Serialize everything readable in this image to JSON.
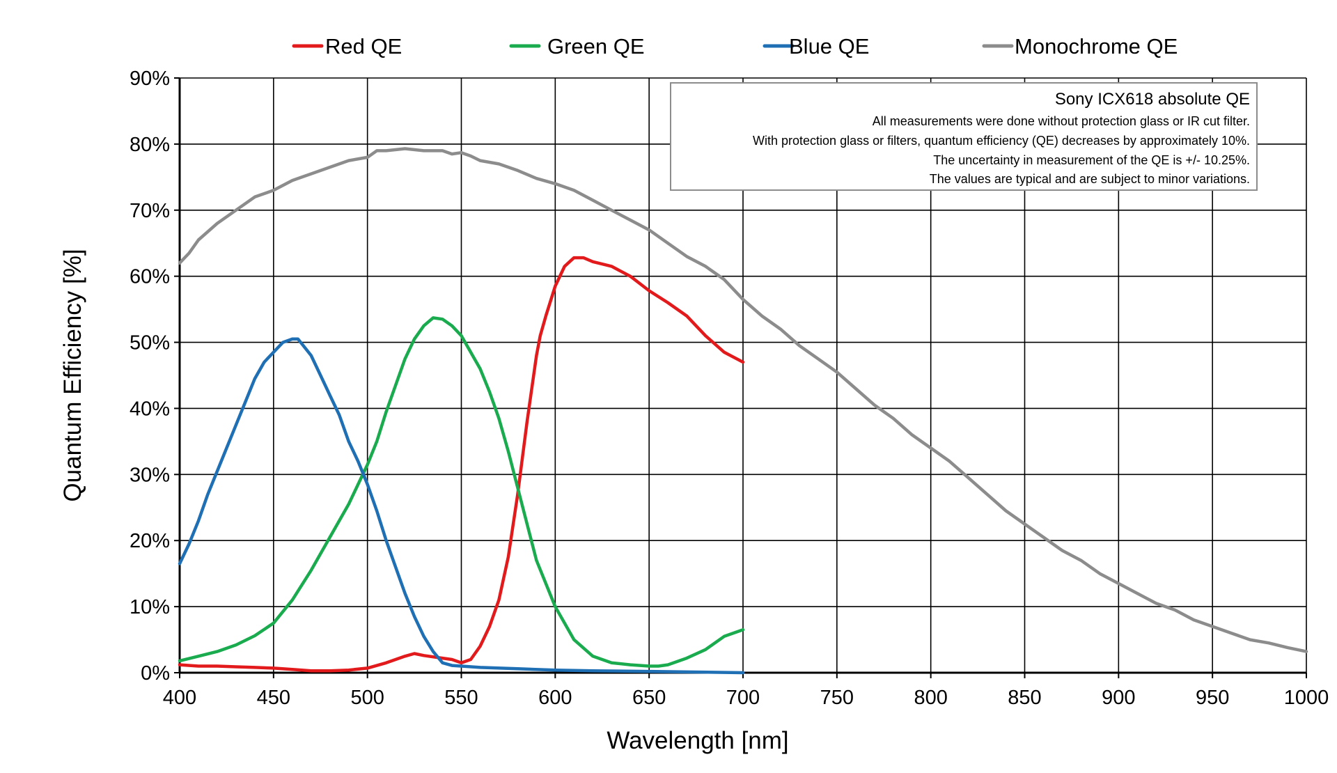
{
  "chart_data": {
    "type": "line",
    "xlabel": "Wavelength [nm]",
    "ylabel": "Quantum Efficiency [%]",
    "xlim": [
      400,
      1000
    ],
    "ylim": [
      0,
      90
    ],
    "x_ticks": [
      "400",
      "450",
      "500",
      "550",
      "600",
      "650",
      "700",
      "750",
      "800",
      "850",
      "900",
      "950",
      "1000"
    ],
    "y_ticks": [
      "0%",
      "10%",
      "20%",
      "30%",
      "40%",
      "50%",
      "60%",
      "70%",
      "80%",
      "90%"
    ],
    "grid": true,
    "legend_position": "top",
    "annotation": {
      "title": "Sony ICX618 absolute QE",
      "lines": [
        "All measurements were done without protection glass or IR cut filter.",
        "With protection glass or filters, quantum efficiency (QE) decreases by approximately 10%.",
        "The uncertainty in measurement of the QE is +/- 10.25%.",
        "The values are typical and are subject to minor variations."
      ]
    },
    "series": [
      {
        "name": "Red QE",
        "color": "#e31a1c",
        "x": [
          400,
          410,
          420,
          430,
          440,
          450,
          460,
          470,
          480,
          490,
          500,
          510,
          520,
          525,
          530,
          540,
          545,
          550,
          555,
          560,
          565,
          570,
          575,
          580,
          585,
          590,
          592,
          595,
          600,
          605,
          610,
          615,
          620,
          630,
          640,
          650,
          660,
          670,
          675,
          680,
          690,
          700
        ],
        "y": [
          1.2,
          1.0,
          1.0,
          0.9,
          0.8,
          0.7,
          0.5,
          0.3,
          0.3,
          0.4,
          0.7,
          1.5,
          2.5,
          2.9,
          2.6,
          2.2,
          2.0,
          1.5,
          2.0,
          4.0,
          7.0,
          11.0,
          17.5,
          27.0,
          38.0,
          48.0,
          51.0,
          54.0,
          58.5,
          61.5,
          62.8,
          62.8,
          62.2,
          61.5,
          60.0,
          57.8,
          56.0,
          54.0,
          52.5,
          51.0,
          48.5,
          47.0
        ]
      },
      {
        "name": "Green QE",
        "color": "#1aab4f",
        "x": [
          400,
          410,
          420,
          430,
          440,
          450,
          460,
          470,
          480,
          490,
          500,
          505,
          510,
          515,
          520,
          525,
          530,
          535,
          540,
          545,
          550,
          555,
          560,
          565,
          570,
          575,
          580,
          590,
          600,
          610,
          620,
          630,
          640,
          650,
          655,
          660,
          670,
          680,
          690,
          700
        ],
        "y": [
          1.8,
          2.5,
          3.2,
          4.2,
          5.6,
          7.5,
          11.0,
          15.5,
          20.5,
          25.5,
          31.5,
          35.0,
          39.5,
          43.5,
          47.5,
          50.5,
          52.5,
          53.7,
          53.5,
          52.5,
          51.0,
          48.5,
          46.0,
          42.5,
          38.5,
          33.5,
          28.0,
          17.0,
          10.0,
          5.0,
          2.5,
          1.5,
          1.2,
          1.0,
          1.0,
          1.2,
          2.2,
          3.5,
          5.5,
          6.5
        ]
      },
      {
        "name": "Blue QE",
        "color": "#1f6fb5",
        "x": [
          400,
          405,
          410,
          415,
          420,
          425,
          430,
          435,
          440,
          445,
          450,
          455,
          460,
          463,
          465,
          470,
          475,
          480,
          485,
          490,
          495,
          500,
          505,
          510,
          515,
          520,
          525,
          530,
          535,
          540,
          545,
          550,
          560,
          580,
          600,
          620,
          650,
          700
        ],
        "y": [
          16.5,
          19.5,
          23.0,
          27.0,
          30.5,
          34.0,
          37.5,
          41.0,
          44.5,
          47.0,
          48.5,
          50.0,
          50.5,
          50.5,
          49.8,
          48.0,
          45.0,
          42.0,
          39.0,
          35.0,
          32.0,
          28.5,
          24.5,
          20.0,
          16.0,
          12.0,
          8.5,
          5.5,
          3.2,
          1.5,
          1.1,
          1.0,
          0.8,
          0.6,
          0.4,
          0.3,
          0.2,
          0.0
        ]
      },
      {
        "name": "Monochrome QE",
        "color": "#8c8c8c",
        "x": [
          400,
          405,
          410,
          420,
          430,
          440,
          450,
          460,
          470,
          480,
          490,
          500,
          505,
          510,
          520,
          530,
          540,
          545,
          550,
          555,
          560,
          570,
          580,
          590,
          600,
          610,
          620,
          630,
          640,
          650,
          660,
          670,
          680,
          690,
          700,
          710,
          720,
          730,
          740,
          750,
          760,
          770,
          780,
          790,
          800,
          810,
          820,
          830,
          840,
          850,
          860,
          870,
          880,
          890,
          900,
          910,
          920,
          930,
          940,
          950,
          960,
          970,
          980,
          990,
          1000
        ],
        "y": [
          62.0,
          63.5,
          65.5,
          68.0,
          70.0,
          72.0,
          73.0,
          74.5,
          75.5,
          76.5,
          77.5,
          78.0,
          79.0,
          79.0,
          79.3,
          79.0,
          79.0,
          78.5,
          78.7,
          78.2,
          77.5,
          77.0,
          76.0,
          74.8,
          74.0,
          73.0,
          71.5,
          70.0,
          68.5,
          67.0,
          65.0,
          63.0,
          61.5,
          59.5,
          56.5,
          54.0,
          52.0,
          49.5,
          47.5,
          45.5,
          43.0,
          40.5,
          38.5,
          36.0,
          34.0,
          32.0,
          29.5,
          27.0,
          24.5,
          22.5,
          20.5,
          18.5,
          17.0,
          15.0,
          13.5,
          12.0,
          10.5,
          9.5,
          8.0,
          7.0,
          6.0,
          5.0,
          4.5,
          3.8,
          3.2
        ]
      }
    ]
  }
}
